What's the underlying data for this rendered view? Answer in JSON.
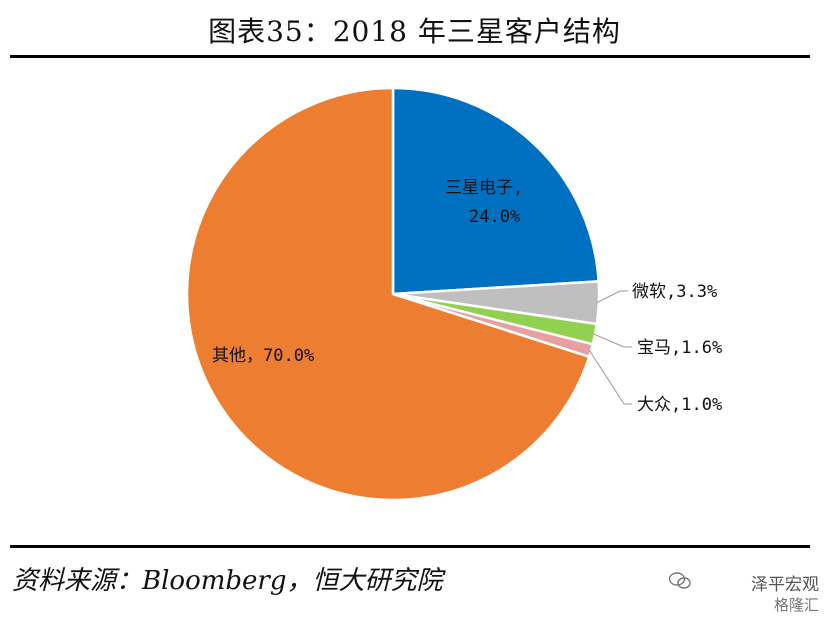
{
  "title": "图表35：2018 年三星客户结构",
  "source": "资料来源：Bloomberg，恒大研究院",
  "watermark": {
    "line1": "泽平宏观",
    "line2": "格隆汇"
  },
  "colors": {
    "samsung": "#0070C0",
    "microsoft": "#BFBFBF",
    "bmw": "#92D050",
    "vw": "#E6A0A0",
    "other": "#ED7D31"
  },
  "chart_data": {
    "type": "pie",
    "title": "图表35：2018 年三星客户结构",
    "slices": [
      {
        "label": "三星电子",
        "value": 24.0,
        "text": "24.0%",
        "color": "#0070C0"
      },
      {
        "label": "微软",
        "value": 3.3,
        "text": "3.3%",
        "color": "#BFBFBF"
      },
      {
        "label": "宝马",
        "value": 1.6,
        "text": "1.6%",
        "color": "#92D050"
      },
      {
        "label": "大众",
        "value": 1.0,
        "text": "1.0%",
        "color": "#E6A0A0"
      },
      {
        "label": "其他",
        "value": 70.0,
        "text": "70.0%",
        "color": "#ED7D31"
      }
    ],
    "labels": {
      "samsung_line1": "三星电子,",
      "samsung_line2": "24.0%",
      "microsoft": "微软,3.3%",
      "bmw": "宝马,1.6%",
      "vw": "大众,1.0%",
      "other": "其他，70.0%"
    }
  }
}
